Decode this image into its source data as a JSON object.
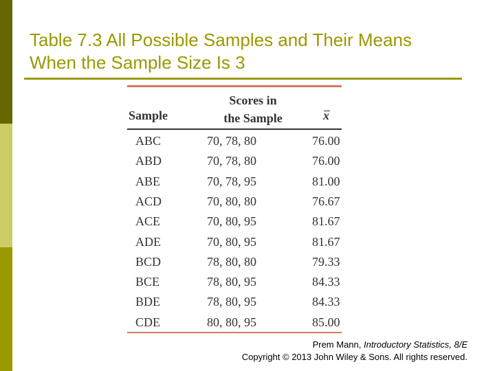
{
  "slide": {
    "title_line1": "Table 7.3 All Possible Samples and Their Means",
    "title_line2": "When the Sample Size Is 3"
  },
  "table": {
    "headers": {
      "sample": "Sample",
      "scores_line1": "Scores in",
      "scores_line2": "the Sample",
      "mean": "x"
    },
    "rows": [
      {
        "sample": "ABC",
        "scores": "70, 78, 80",
        "mean": "76.00"
      },
      {
        "sample": "ABD",
        "scores": "70, 78, 80",
        "mean": "76.00"
      },
      {
        "sample": "ABE",
        "scores": "70, 78, 95",
        "mean": "81.00"
      },
      {
        "sample": "ACD",
        "scores": "70, 80, 80",
        "mean": "76.67"
      },
      {
        "sample": "ACE",
        "scores": "70, 80, 95",
        "mean": "81.67"
      },
      {
        "sample": "ADE",
        "scores": "70, 80, 95",
        "mean": "81.67"
      },
      {
        "sample": "BCD",
        "scores": "78, 80, 80",
        "mean": "79.33"
      },
      {
        "sample": "BCE",
        "scores": "78, 80, 95",
        "mean": "84.33"
      },
      {
        "sample": "BDE",
        "scores": "78, 80, 95",
        "mean": "84.33"
      },
      {
        "sample": "CDE",
        "scores": "80, 80, 95",
        "mean": "85.00"
      }
    ]
  },
  "footer": {
    "author": "Prem Mann, ",
    "book": "Introductory Statistics, 8/E",
    "copyright": "Copyright © 2013 John Wiley & Sons. All rights reserved."
  },
  "colors": {
    "title": "#999900",
    "sidebar_dark": "#666600",
    "sidebar_light": "#cccc66",
    "table_rule": "#d07a60"
  }
}
